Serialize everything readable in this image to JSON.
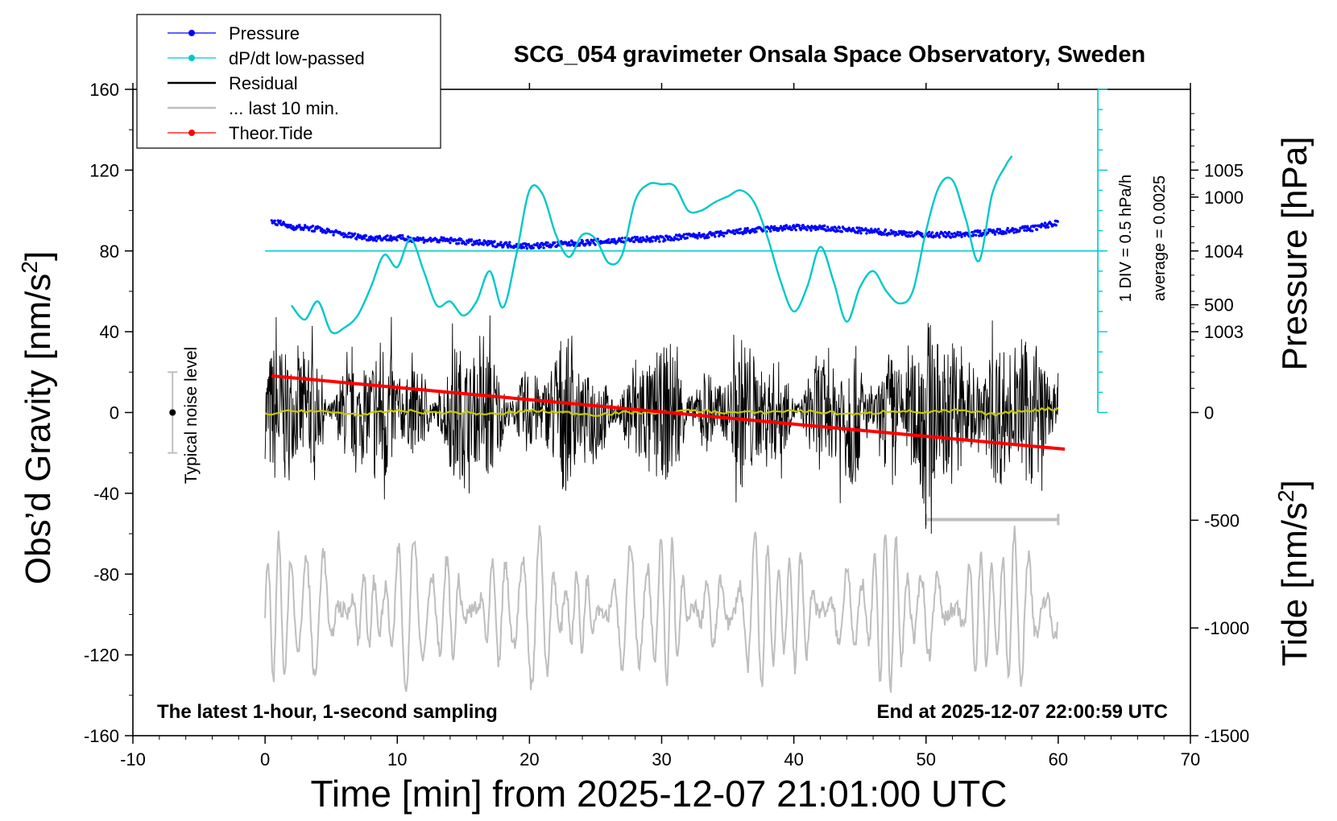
{
  "chart_data": {
    "type": "line",
    "title": "SCG_054 gravimeter Onsala Space Observatory, Sweden",
    "xlabel": "Time [min] from 2025-12-07 21:01:00 UTC",
    "ylabel_left": "Obs’d Gravity [nm/s",
    "ylabel_left_sup": "2",
    "ylabel_left_end": "]",
    "ylabel_right_pressure": "Pressure [hPa]",
    "ylabel_right_tide": "Tide [nm/s",
    "ylabel_right_tide_sup": "2",
    "ylabel_right_tide_end": "]",
    "footer_left": "The latest 1-hour, 1-second sampling",
    "footer_right": "End at 2025-12-07 22:00:59 UTC",
    "noise_label": "Typical noise level",
    "dpdt_scale_label": "1 DIV = 0.5 hPa/h",
    "dpdt_average_label": "average = 0.0025",
    "xlim": [
      -10,
      70
    ],
    "ylim_gravity": [
      -160,
      160
    ],
    "ylim_tide": [
      -1500,
      1500
    ],
    "pressure_axis": {
      "ticks": [
        1003,
        1004,
        1005
      ],
      "ref_gravity_at_1004": 80,
      "gravity_per_hpa": 40
    },
    "x_ticks": [
      -10,
      0,
      10,
      20,
      30,
      40,
      50,
      60,
      70
    ],
    "y_ticks_gravity": [
      -160,
      -120,
      -80,
      -40,
      0,
      40,
      80,
      120,
      160
    ],
    "y_ticks_tide": [
      -1500,
      -1000,
      -500,
      0,
      500,
      1000
    ],
    "legend": [
      {
        "label": "Pressure",
        "color": "#0000ff",
        "marker": true
      },
      {
        "label": "dP/dt low-passed",
        "color": "#00c8c8",
        "marker": true
      },
      {
        "label": "Residual",
        "color": "#000000",
        "marker": false
      },
      {
        "label": "... last 10 min.",
        "color": "#bebebe",
        "marker": false
      },
      {
        "label": "Theor.Tide",
        "color": "#ff0000",
        "marker": true
      }
    ],
    "series": [
      {
        "name": "Pressure",
        "color": "#0000ff",
        "x": [
          0.5,
          2,
          4,
          6,
          8,
          10,
          12,
          14,
          16,
          18,
          20,
          22,
          24,
          26,
          28,
          30,
          32,
          34,
          36,
          38,
          40,
          42,
          44,
          46,
          48,
          50,
          52,
          54,
          56,
          58,
          60
        ],
        "y": [
          1004.37,
          1004.3,
          1004.27,
          1004.2,
          1004.16,
          1004.16,
          1004.14,
          1004.13,
          1004.1,
          1004.08,
          1004.06,
          1004.08,
          1004.1,
          1004.12,
          1004.14,
          1004.15,
          1004.18,
          1004.2,
          1004.24,
          1004.27,
          1004.29,
          1004.28,
          1004.26,
          1004.24,
          1004.22,
          1004.2,
          1004.2,
          1004.22,
          1004.25,
          1004.28,
          1004.35
        ]
      },
      {
        "name": "dP/dt low-passed",
        "color": "#00c8c8",
        "x": [
          2,
          3,
          4,
          5,
          6,
          7,
          8,
          9,
          10,
          11,
          12,
          13,
          14,
          15,
          16,
          17,
          18,
          19,
          20,
          21,
          22,
          23,
          24,
          25,
          26,
          27,
          28,
          29,
          30,
          31,
          32,
          33,
          34,
          35,
          36,
          37,
          38,
          39,
          40,
          41,
          42,
          43,
          44,
          45,
          46,
          47,
          48,
          49,
          50,
          51,
          52,
          53,
          54,
          55,
          56,
          56.5
        ],
        "y": [
          53,
          46,
          55,
          40,
          42,
          48,
          62,
          78,
          72,
          86,
          70,
          53,
          55,
          48,
          55,
          70,
          52,
          78,
          110,
          108,
          88,
          77,
          88,
          86,
          74,
          78,
          105,
          113,
          113,
          112,
          100,
          100,
          104,
          107,
          110,
          104,
          87,
          65,
          50,
          62,
          82,
          65,
          45,
          62,
          70,
          60,
          54,
          60,
          90,
          112,
          115,
          96,
          75,
          108,
          122,
          127
        ]
      },
      {
        "name": "Residual",
        "color": "#000000",
        "x": [
          0,
          2.5,
          5,
          7.5,
          10,
          12.5,
          15,
          17.5,
          20,
          22.5,
          25,
          27.5,
          30,
          32.5,
          35,
          37.5,
          40,
          42.5,
          45,
          47.5,
          50,
          52.5,
          55,
          57.5,
          60
        ],
        "y": [
          -1,
          1,
          0,
          -1,
          1,
          0,
          0,
          -1,
          1,
          0,
          -1,
          0,
          0,
          1,
          0,
          0,
          1,
          0,
          -1,
          1,
          0,
          1,
          -1,
          1,
          2
        ]
      },
      {
        "name": "Theor.Tide",
        "color": "#ff0000",
        "x": [
          0.5,
          60.5
        ],
        "y": [
          170,
          -170
        ]
      }
    ]
  }
}
